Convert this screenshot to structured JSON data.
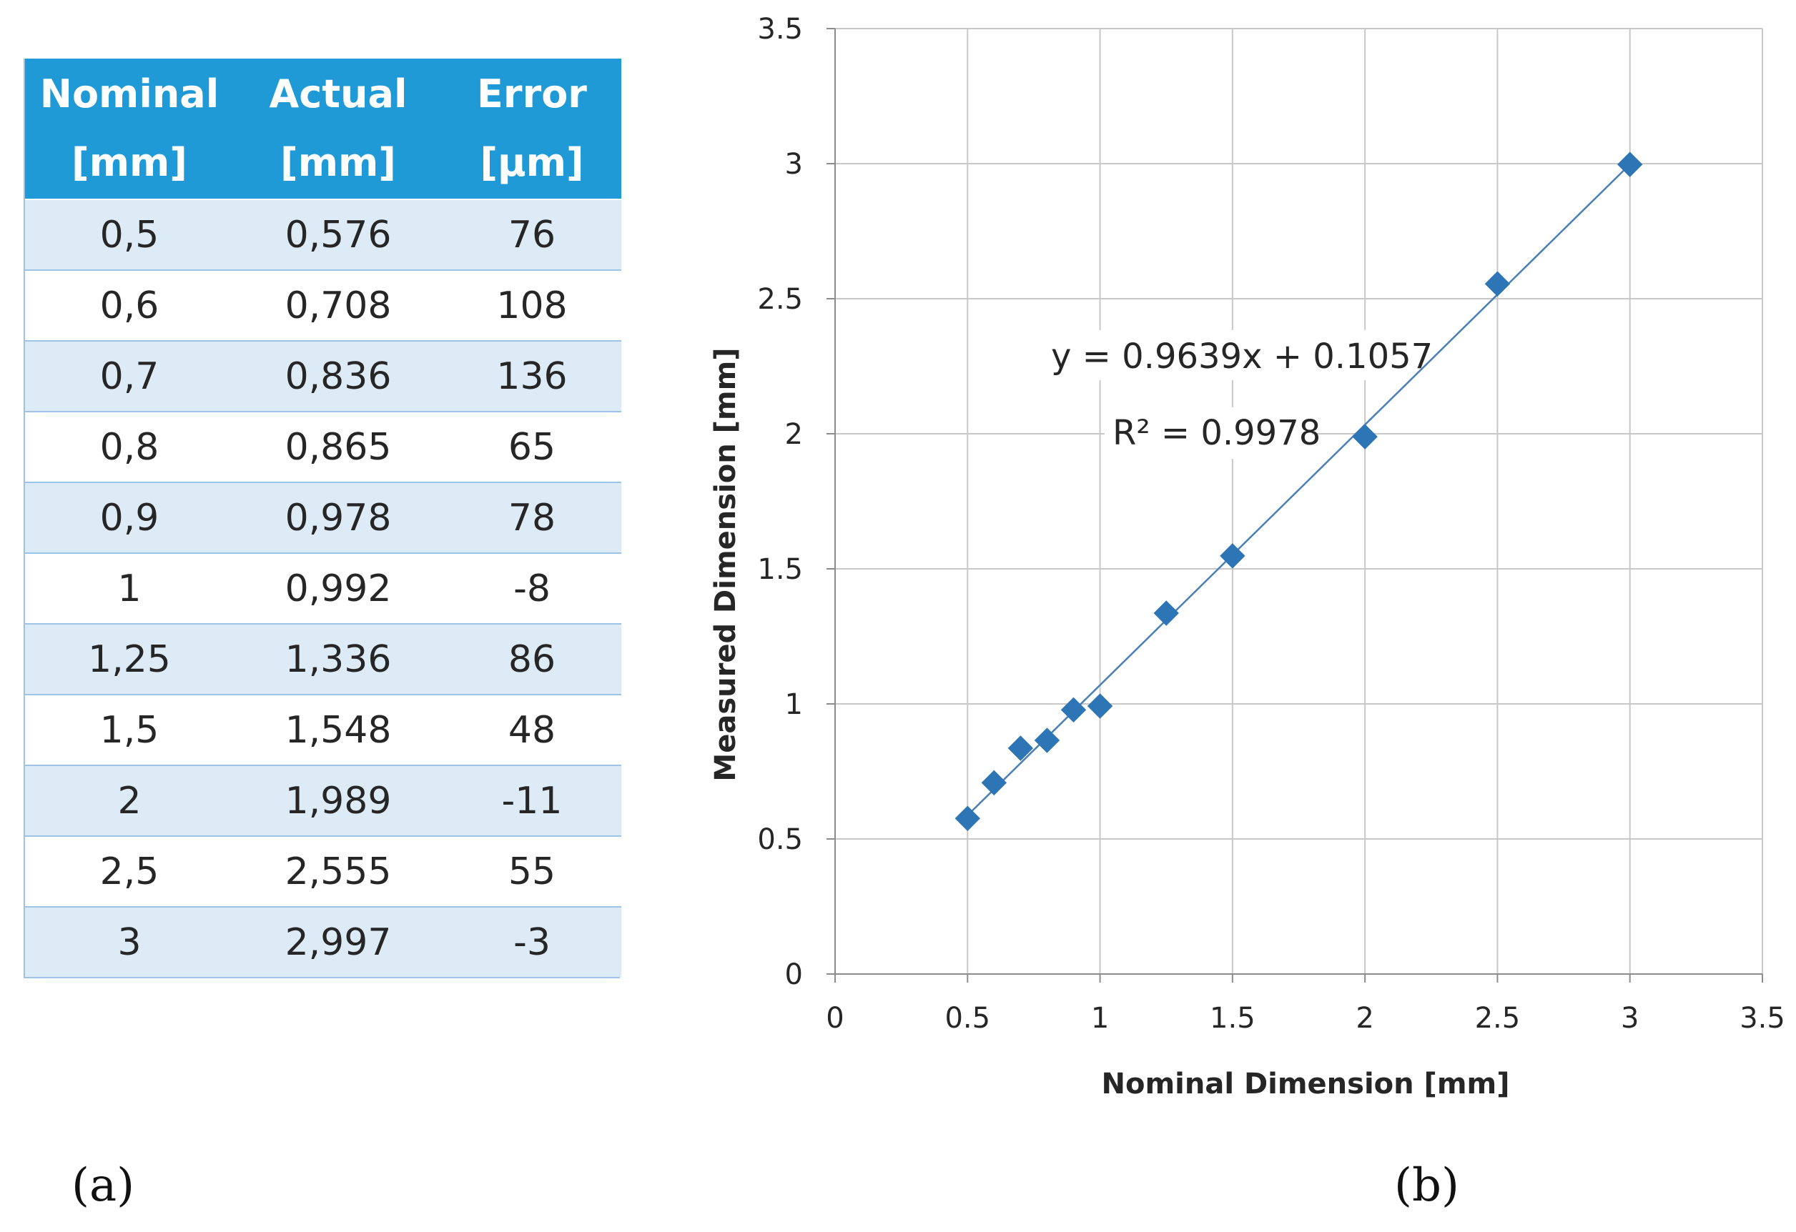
{
  "table": {
    "columns": [
      {
        "line1": "Nominal",
        "line2": "[mm]"
      },
      {
        "line1": "Actual",
        "line2": "[mm]"
      },
      {
        "line1": "Error",
        "line2": "[μm]"
      }
    ],
    "rows": [
      [
        "0,5",
        "0,576",
        "76"
      ],
      [
        "0,6",
        "0,708",
        "108"
      ],
      [
        "0,7",
        "0,836",
        "136"
      ],
      [
        "0,8",
        "0,865",
        "65"
      ],
      [
        "0,9",
        "0,978",
        "78"
      ],
      [
        "1",
        "0,992",
        "-8"
      ],
      [
        "1,25",
        "1,336",
        "86"
      ],
      [
        "1,5",
        "1,548",
        "48"
      ],
      [
        "2",
        "1,989",
        "-11"
      ],
      [
        "2,5",
        "2,555",
        "55"
      ],
      [
        "3",
        "2,997",
        "-3"
      ]
    ]
  },
  "panel_labels": {
    "a": "(a)",
    "b": "(b)"
  },
  "colors": {
    "header_bg": "#1f9ad6",
    "band_bg": "#ddebf7",
    "marker": "#2e75b6",
    "trendline": "#4a7fb5",
    "grid": "#c8c8c8"
  },
  "chart_data": {
    "type": "scatter",
    "xlabel": "Nominal Dimension [mm]",
    "ylabel": "Measured Dimension [mm]",
    "xlim": [
      0,
      3.5
    ],
    "ylim": [
      0,
      3.5
    ],
    "xticks": [
      0,
      0.5,
      1,
      1.5,
      2,
      2.5,
      3,
      3.5
    ],
    "yticks": [
      0,
      0.5,
      1,
      1.5,
      2,
      2.5,
      3,
      3.5
    ],
    "xtick_labels": [
      "0",
      "0.5",
      "1",
      "1.5",
      "2",
      "2.5",
      "3",
      "3.5"
    ],
    "ytick_labels": [
      "0",
      "0.5",
      "1",
      "1.5",
      "2",
      "2.5",
      "3",
      "3.5"
    ],
    "grid": true,
    "marker": "diamond",
    "series": [
      {
        "x": [
          0.5,
          0.6,
          0.7,
          0.8,
          0.9,
          1,
          1.25,
          1.5,
          2,
          2.5,
          3
        ],
        "y": [
          0.576,
          0.708,
          0.836,
          0.865,
          0.978,
          0.992,
          1.336,
          1.548,
          1.989,
          2.555,
          2.997
        ]
      }
    ],
    "trendline": {
      "type": "linear",
      "slope": 0.9639,
      "intercept": 0.1057,
      "x_range": [
        0.5,
        3
      ],
      "equation_label": "y = 0.9639x + 0.1057",
      "r2_label": "R² = 0.9978"
    }
  }
}
